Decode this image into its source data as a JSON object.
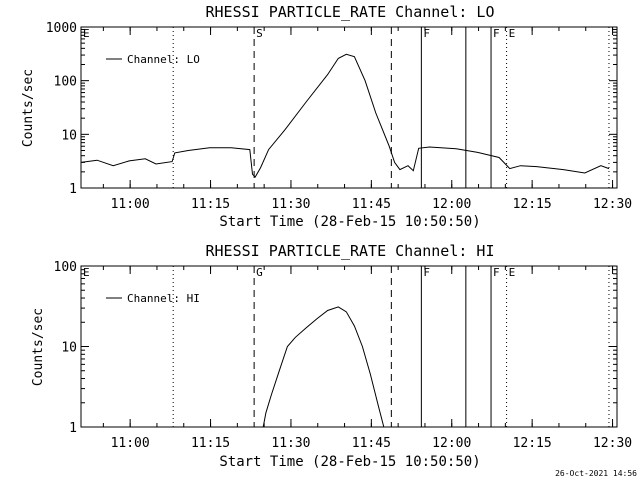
{
  "chart_data": [
    {
      "type": "line",
      "title": "RHESSI PARTICLE_RATE Channel: LO",
      "xlabel": "Start Time (28-Feb-15 10:50:50)",
      "ylabel": "Counts/sec",
      "x_units": "minutes after 10:50:50",
      "xlim": [
        0,
        100
      ],
      "ylim": [
        1,
        1000
      ],
      "yscale": "log",
      "x_tick_labels": [
        "11:00",
        "11:15",
        "11:30",
        "11:45",
        "12:00",
        "12:15",
        "12:30"
      ],
      "x_tick_values": [
        9.17,
        24.17,
        39.17,
        54.17,
        69.17,
        84.17,
        99.17
      ],
      "y_tick_labels": [
        "1",
        "10",
        "100",
        "1000"
      ],
      "y_tick_values": [
        1,
        10,
        100,
        1000
      ],
      "legend": {
        "position": "top-left",
        "entries": [
          "Channel: LO"
        ]
      },
      "markers": [
        {
          "label": "E",
          "x": 0,
          "style": "dotted"
        },
        {
          "label": "",
          "x": 17.2,
          "style": "dotted"
        },
        {
          "label": "S",
          "x": 32.3,
          "style": "dashed"
        },
        {
          "label": "",
          "x": 57.9,
          "style": "dashed"
        },
        {
          "label": "F",
          "x": 63.5,
          "style": "solid"
        },
        {
          "label": "",
          "x": 71.8,
          "style": "solid"
        },
        {
          "label": "F",
          "x": 76.5,
          "style": "solid"
        },
        {
          "label": "E",
          "x": 79.4,
          "style": "dotted"
        },
        {
          "label": "",
          "x": 98.5,
          "style": "dotted"
        }
      ],
      "series": [
        {
          "name": "Channel: LO",
          "x": [
            0,
            3,
            6,
            9,
            12,
            14,
            17,
            17.5,
            20,
            24,
            28,
            31.5,
            32,
            32.5,
            33.5,
            35,
            38,
            42,
            46,
            48,
            49.5,
            51,
            53,
            55,
            57.5,
            58.5,
            59.5,
            61,
            62,
            63,
            65,
            70,
            74,
            78,
            80,
            82,
            85,
            90,
            94,
            97,
            98.5
          ],
          "y": [
            3,
            3.3,
            2.6,
            3.2,
            3.5,
            2.8,
            3.1,
            4.5,
            5,
            5.6,
            5.6,
            5.2,
            1.8,
            1.6,
            2.4,
            5.2,
            12,
            40,
            130,
            260,
            310,
            280,
            100,
            25,
            6,
            3,
            2.2,
            2.6,
            2.1,
            5.5,
            5.8,
            5.4,
            4.6,
            3.7,
            2.3,
            2.6,
            2.5,
            2.2,
            1.9,
            2.6,
            2.3
          ]
        }
      ]
    },
    {
      "type": "line",
      "title": "RHESSI PARTICLE_RATE Channel: HI",
      "xlabel": "Start Time (28-Feb-15 10:50:50)",
      "ylabel": "Counts/sec",
      "x_units": "minutes after 10:50:50",
      "xlim": [
        0,
        100
      ],
      "ylim": [
        1,
        100
      ],
      "yscale": "log",
      "x_tick_labels": [
        "11:00",
        "11:15",
        "11:30",
        "11:45",
        "12:00",
        "12:15",
        "12:30"
      ],
      "x_tick_values": [
        9.17,
        24.17,
        39.17,
        54.17,
        69.17,
        84.17,
        99.17
      ],
      "y_tick_labels": [
        "1",
        "10",
        "100"
      ],
      "y_tick_values": [
        1,
        10,
        100
      ],
      "legend": {
        "position": "top-left",
        "entries": [
          "Channel: HI"
        ]
      },
      "markers": [
        {
          "label": "E",
          "x": 0,
          "style": "dotted"
        },
        {
          "label": "",
          "x": 17.2,
          "style": "dotted"
        },
        {
          "label": "G",
          "x": 32.3,
          "style": "dashed"
        },
        {
          "label": "",
          "x": 57.9,
          "style": "dashed"
        },
        {
          "label": "F",
          "x": 63.5,
          "style": "solid"
        },
        {
          "label": "",
          "x": 71.8,
          "style": "solid"
        },
        {
          "label": "F",
          "x": 76.5,
          "style": "solid"
        },
        {
          "label": "E",
          "x": 79.4,
          "style": "dotted"
        },
        {
          "label": "",
          "x": 98.5,
          "style": "dotted"
        }
      ],
      "series": [
        {
          "name": "Channel: HI",
          "x": [
            34,
            34.5,
            35.5,
            37,
            38.5,
            40,
            42,
            44,
            46,
            48,
            49.5,
            51,
            52.5,
            54,
            55.5,
            56.5
          ],
          "y": [
            1,
            1.5,
            2.5,
            5,
            10,
            13,
            17,
            22,
            28,
            31,
            27,
            18,
            10,
            4.5,
            1.8,
            1
          ]
        }
      ]
    }
  ],
  "footer": {
    "timestamp": "26-Oct-2021 14:56"
  }
}
